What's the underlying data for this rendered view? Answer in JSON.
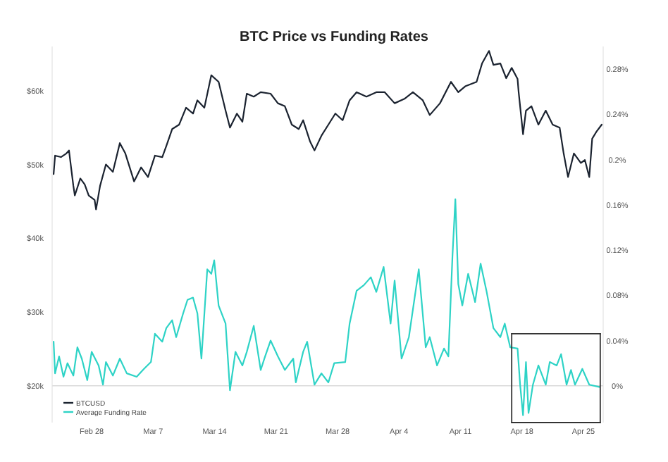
{
  "chart_data": {
    "type": "line",
    "title": "BTC Price vs Funding Rates",
    "xlim": [
      "--02-23T12:00",
      "--04-27T06:00"
    ],
    "xticks": [
      {
        "value": "--02-28",
        "label": "Feb 28"
      },
      {
        "value": "--03-07",
        "label": "Mar 7"
      },
      {
        "value": "--03-14",
        "label": "Mar 14"
      },
      {
        "value": "--03-21",
        "label": "Mar 21"
      },
      {
        "value": "--03-28",
        "label": "Mar 28"
      },
      {
        "value": "--04-04",
        "label": "Apr 4"
      },
      {
        "value": "--04-11",
        "label": "Apr 11"
      },
      {
        "value": "--04-18",
        "label": "Apr 18"
      },
      {
        "value": "--04-25",
        "label": "Apr 25"
      }
    ],
    "yticks": [
      {
        "value": 20000,
        "label": "$20k"
      },
      {
        "value": 30000,
        "label": "$30k"
      },
      {
        "value": 40000,
        "label": "$40k"
      },
      {
        "value": 50000,
        "label": "$50k"
      },
      {
        "value": 60000,
        "label": "$60k"
      }
    ],
    "y2ticks": [
      {
        "value": 0,
        "label": "0%"
      },
      {
        "value": 0.04,
        "label": "0.04%"
      },
      {
        "value": 0.08,
        "label": "0.08%"
      },
      {
        "value": 0.12,
        "label": "0.12%"
      },
      {
        "value": 0.16,
        "label": "0.16%"
      },
      {
        "value": 0.2,
        "label": "0.2%"
      },
      {
        "value": 0.24,
        "label": "0.24%"
      },
      {
        "value": 0.28,
        "label": "0.28%"
      }
    ],
    "ref_lines": [
      {
        "axis": "y2",
        "value": 0,
        "color": "#d9d9d9"
      }
    ],
    "ylim": [
      15000,
      66000
    ],
    "y2lim": [
      -0.0325,
      0.3
    ],
    "legend": "bottom left",
    "series": [
      {
        "name": "BTCUSD",
        "color": "#1b2330",
        "x": [
          "--02-23T16:00",
          "--02-23T20:00",
          "--02-24T12:00",
          "--02-25T03:00",
          "--02-25T10:00",
          "--02-25T22:00",
          "--02-26T02:00",
          "--02-26T17:00",
          "--02-27T05:00",
          "--02-27T16:00",
          "--02-28T08:00",
          "--02-28T12:00",
          "--02-28T23:00",
          "--03-01T15:00",
          "--03-02T10:00",
          "--03-03T05:00",
          "--03-03T20:00",
          "--03-04T20:00",
          "--03-05T15:00",
          "--03-06T10:00",
          "--03-07T05:00",
          "--03-08T01:00",
          "--03-08T12:00",
          "--03-09T04:00",
          "--03-09T23:00",
          "--03-10T18:00",
          "--03-11T13:00",
          "--03-12T01:00",
          "--03-12T20:00",
          "--03-13T15:00",
          "--03-14T11:00",
          "--03-15T06:00",
          "--03-15T18:00",
          "--03-16T13:00",
          "--03-17T04:00",
          "--03-17T16:00",
          "--03-18T11:00",
          "--03-19T06:00",
          "--03-20T09:00",
          "--03-21T05:00",
          "--03-22T00:00",
          "--03-22T19:00",
          "--03-23T14:00",
          "--03-24T02:00",
          "--03-24T21:00",
          "--03-25T09:00",
          "--03-26T04:00",
          "--03-26T23:00",
          "--03-27T18:00",
          "--03-28T14:00",
          "--03-29T09:00",
          "--03-30T04:00",
          "--03-31T07:00",
          "--04-01T10:00",
          "--04-02T09:00",
          "--04-03T12:00",
          "--04-04T15:00",
          "--04-05T14:00",
          "--04-06T17:00",
          "--04-07T12:00",
          "--04-08T16:00",
          "--04-09T22:00",
          "--04-10T18:00",
          "--04-11T13:00",
          "--04-12T20:00",
          "--04-13T11:00",
          "--04-14T06:00",
          "--04-14T18:00",
          "--04-15T13:00",
          "--04-16T05:00",
          "--04-16T20:00",
          "--04-17T12:00",
          "--04-17T15:00",
          "--04-18T03:00",
          "--04-18T11:00",
          "--04-19T02:00",
          "--04-19T21:00",
          "--04-20T17:00",
          "--04-21T12:00",
          "--04-22T07:00",
          "--04-22T18:00",
          "--04-23T06:00",
          "--04-23T22:00",
          "--04-24T17:00",
          "--04-25T04:00",
          "--04-25T16:00",
          "--04-26T00:00",
          "--04-26T11:00",
          "--04-27T02:00"
        ],
        "values": [
          48700,
          51200,
          51000,
          51500,
          51900,
          47100,
          45800,
          48100,
          47300,
          45800,
          45200,
          43900,
          47100,
          50000,
          49000,
          52900,
          51500,
          47700,
          49600,
          48300,
          51200,
          51000,
          52500,
          54800,
          55400,
          57700,
          56900,
          58700,
          57700,
          62100,
          61200,
          57300,
          55000,
          56900,
          55800,
          59600,
          59200,
          59800,
          59600,
          58300,
          57900,
          55400,
          54800,
          56000,
          53100,
          51900,
          53900,
          55400,
          56900,
          56000,
          58700,
          59800,
          59200,
          59800,
          59800,
          58300,
          58900,
          59800,
          58700,
          56700,
          58300,
          61200,
          59800,
          60600,
          61200,
          63700,
          65400,
          63500,
          63700,
          61700,
          63100,
          61600,
          59800,
          54100,
          57300,
          57900,
          55400,
          57300,
          55400,
          55000,
          51500,
          48300,
          51500,
          50200,
          50600,
          48300,
          53500,
          54400,
          55400
        ]
      },
      {
        "name": "Average Funding Rate",
        "color": "#2ed3c6",
        "axis": "y2",
        "x": [
          "--02-23T16:00",
          "--02-23T20:00",
          "--02-24T07:00",
          "--02-24T19:00",
          "--02-25T06:00",
          "--02-25T22:00",
          "--02-26T09:00",
          "--02-26T21:00",
          "--02-27T12:00",
          "--02-28T00:00",
          "--02-28T19:00",
          "--03-01T07:00",
          "--03-01T15:00",
          "--03-02T10:00",
          "--03-03T05:00",
          "--03-04T00:00",
          "--03-05T03:00",
          "--03-05T23:00",
          "--03-06T18:00",
          "--03-07T05:00",
          "--03-08T01:00",
          "--03-08T12:00",
          "--03-09T04:00",
          "--03-09T15:00",
          "--03-10T10:00",
          "--03-10T22:00",
          "--03-11T13:00",
          "--03-12T01:00",
          "--03-12T12:00",
          "--03-13T04:00",
          "--03-13T15:00",
          "--03-13T23:00",
          "--03-14T11:00",
          "--03-15T06:00",
          "--03-15T18:00",
          "--03-16T09:00",
          "--03-17T04:00",
          "--03-17T16:00",
          "--03-18T11:00",
          "--03-19T06:00",
          "--03-19T18:00",
          "--03-20T09:00",
          "--03-21T05:00",
          "--03-22T00:00",
          "--03-22T23:00",
          "--03-23T06:00",
          "--03-24T02:00",
          "--03-24T13:00",
          "--03-25T09:00",
          "--03-26T04:00",
          "--03-26T23:00",
          "--03-27T15:00",
          "--03-28T21:00",
          "--03-29T09:00",
          "--03-30T04:00",
          "--03-31T00:00",
          "--03-31T19:00",
          "--04-01T10:00",
          "--04-02T06:00",
          "--04-03T01:00",
          "--04-03T12:00",
          "--04-04T07:00",
          "--04-05T03:00",
          "--04-06T06:00",
          "--04-07T01:00",
          "--04-07T12:00",
          "--04-08T08:00",
          "--04-09T03:00",
          "--04-09T15:00",
          "--04-10T02:00",
          "--04-10T10:00",
          "--04-10T18:00",
          "--04-11T05:00",
          "--04-11T21:00",
          "--04-12T16:00",
          "--04-13T07:00",
          "--04-13T23:00",
          "--04-14T18:00",
          "--04-15T13:00",
          "--04-16T01:00",
          "--04-16T16:00",
          "--04-17T12:00",
          "--04-17T19:00",
          "--04-18T03:00",
          "--04-18T11:00",
          "--04-18T18:00",
          "--04-19T06:00",
          "--04-19T21:00",
          "--04-20T17:00",
          "--04-21T04:00",
          "--04-21T23:00",
          "--04-22T11:00",
          "--04-23T02:00",
          "--04-23T14:00",
          "--04-24T01:00",
          "--04-24T21:00",
          "--04-25T16:00",
          "--04-26T19:00"
        ],
        "values": [
          0.039,
          0.011,
          0.026,
          0.008,
          0.02,
          0.009,
          0.034,
          0.024,
          0.005,
          0.03,
          0.018,
          0.001,
          0.021,
          0.009,
          0.024,
          0.011,
          0.008,
          0.015,
          0.021,
          0.046,
          0.039,
          0.051,
          0.058,
          0.043,
          0.064,
          0.076,
          0.078,
          0.064,
          0.024,
          0.103,
          0.099,
          0.111,
          0.071,
          0.055,
          -0.004,
          0.03,
          0.018,
          0.03,
          0.053,
          0.014,
          0.026,
          0.04,
          0.026,
          0.014,
          0.024,
          0.003,
          0.03,
          0.039,
          0.001,
          0.011,
          0.003,
          0.02,
          0.021,
          0.055,
          0.084,
          0.089,
          0.096,
          0.083,
          0.105,
          0.055,
          0.093,
          0.024,
          0.043,
          0.103,
          0.034,
          0.043,
          0.018,
          0.033,
          0.026,
          0.114,
          0.165,
          0.09,
          0.071,
          0.099,
          0.074,
          0.108,
          0.084,
          0.051,
          0.043,
          0.055,
          0.034,
          0.033,
          0.001,
          -0.026,
          0.021,
          -0.024,
          0.001,
          0.018,
          0.001,
          0.021,
          0.018,
          0.028,
          0.001,
          0.014,
          0.001,
          0.015,
          0.001,
          -0.001
        ]
      }
    ]
  }
}
